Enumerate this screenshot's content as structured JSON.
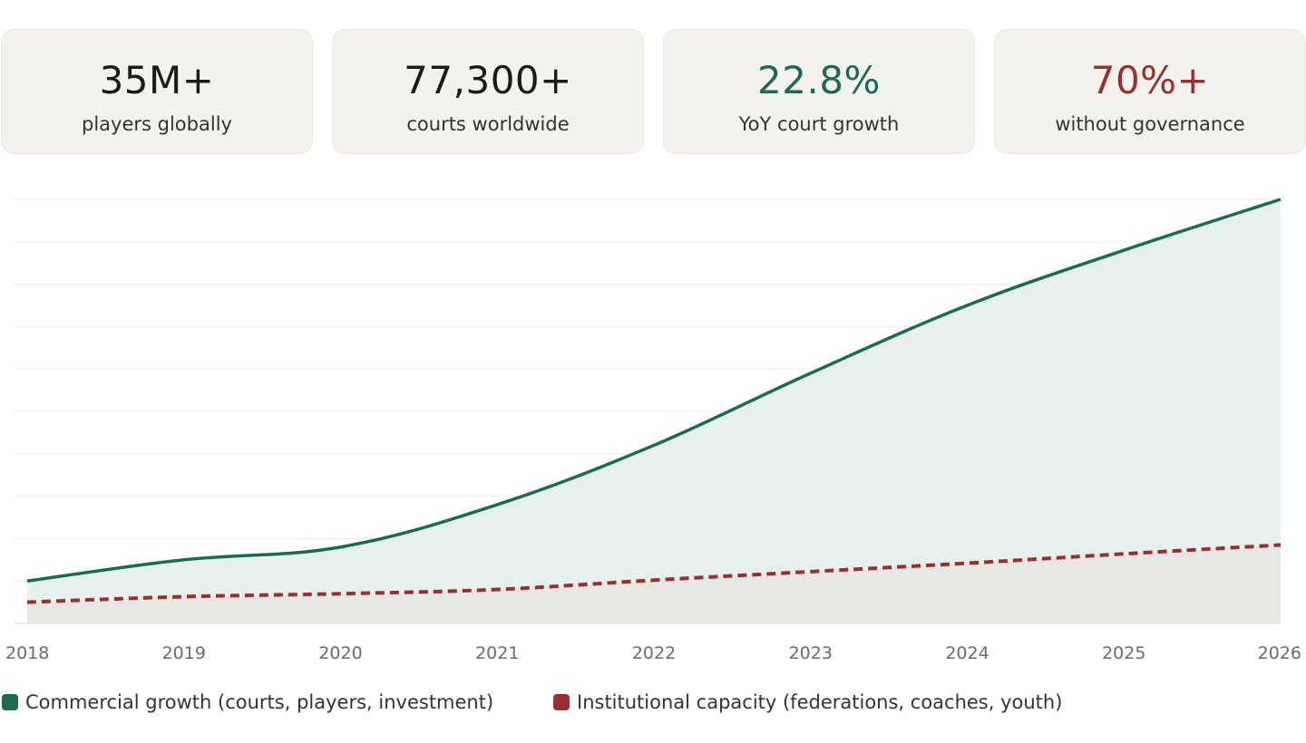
{
  "stats": [
    {
      "value": "35M+",
      "label": "players globally",
      "color": "#1a1a1a"
    },
    {
      "value": "77,300+",
      "label": "courts worldwide",
      "color": "#1a1a1a"
    },
    {
      "value": "22.8%",
      "label": "YoY court growth",
      "color": "#1b6b53"
    },
    {
      "value": "70%+",
      "label": "without governance",
      "color": "#9b2f2f"
    }
  ],
  "chart_data": {
    "type": "area",
    "title": "",
    "xlabel": "",
    "ylabel": "",
    "x": [
      "2018",
      "2019",
      "2020",
      "2021",
      "2022",
      "2023",
      "2024",
      "2025",
      "2026"
    ],
    "ylim": [
      0,
      100
    ],
    "y_ticks_shown": false,
    "grid": true,
    "legend_position": "bottom-left",
    "series": [
      {
        "name": "Commercial growth (courts, players, investment)",
        "values": [
          10,
          15,
          18,
          28,
          42,
          59,
          75,
          88,
          100
        ],
        "color": "#1b6b53",
        "style": "solid",
        "fill": "#e6f0ec"
      },
      {
        "name": "Institutional capacity (federations, coaches, youth)",
        "values": [
          5,
          6.3,
          7,
          8,
          10.2,
          12.2,
          14.2,
          16.4,
          18.5
        ],
        "color": "#9b2f2f",
        "style": "dashed",
        "fill": "#e7e7e4"
      }
    ]
  }
}
